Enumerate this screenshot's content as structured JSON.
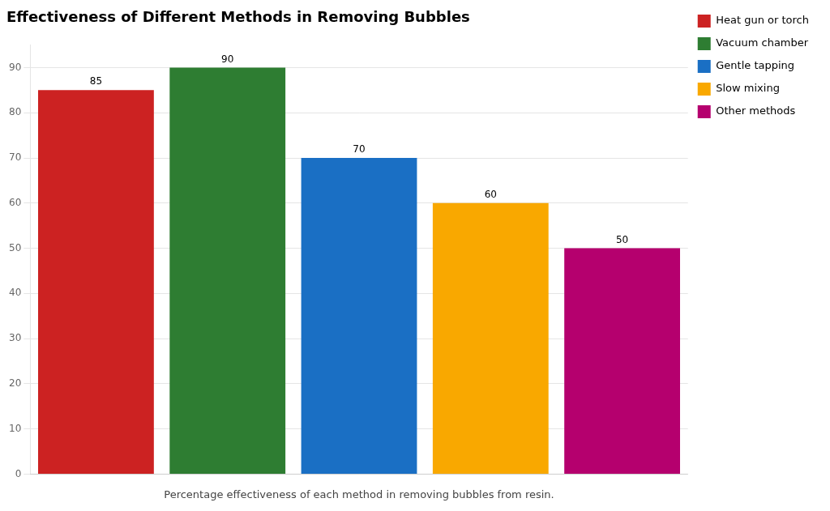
{
  "chart_data": {
    "type": "bar",
    "title": "Effectiveness of Different Methods in Removing Bubbles",
    "xlabel": "Percentage effectiveness of each method in removing bubbles from resin.",
    "categories": [
      "Heat gun or torch",
      "Vacuum chamber",
      "Gentle tapping",
      "Slow mixing",
      "Other methods"
    ],
    "values": [
      85,
      90,
      70,
      60,
      50
    ],
    "colors": [
      "#cc2222",
      "#2e7d32",
      "#1a6fc4",
      "#f9a800",
      "#b5006e"
    ],
    "ylim": [
      0,
      95
    ],
    "yticks": [
      0,
      10,
      20,
      30,
      40,
      50,
      60,
      70,
      80,
      90
    ],
    "grid": true,
    "data_labels": true,
    "legend": "upper right",
    "tick_labels": "y"
  }
}
